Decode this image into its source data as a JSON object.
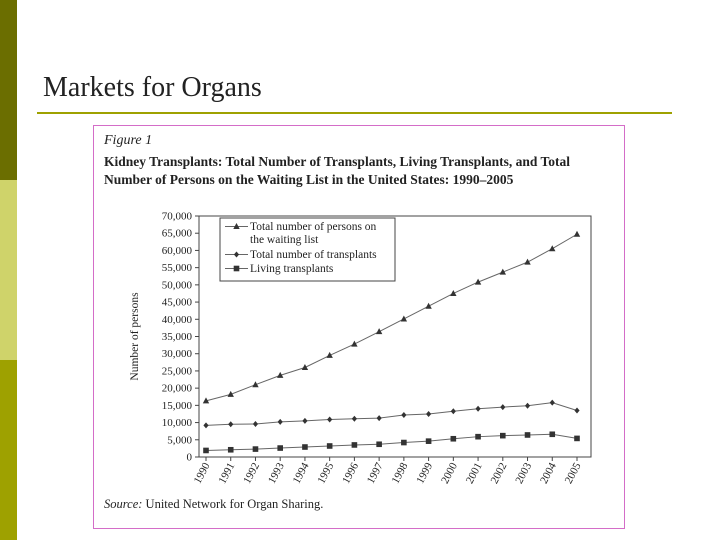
{
  "slide": {
    "title": "Markets for Organs",
    "colors": {
      "accent": "#9ea100",
      "accent_dark": "#6b6e00",
      "accent_light": "#cfd36a",
      "figure_border": "#d46dc8"
    }
  },
  "figure": {
    "label": "Figure 1",
    "heading": "Kidney Transplants: Total Number of Transplants, Living Transplants, and Total Number of Persons on the Waiting List in the United States: 1990–2005",
    "source_label": "Source:",
    "source_text": " United Network for Organ Sharing."
  },
  "chart_data": {
    "type": "line",
    "ylabel": "Number of persons",
    "xlabel": "",
    "ylim": [
      0,
      70000
    ],
    "yticks": [
      0,
      5000,
      10000,
      15000,
      20000,
      25000,
      30000,
      35000,
      40000,
      45000,
      50000,
      55000,
      60000,
      65000,
      70000
    ],
    "ytick_labels": [
      "0",
      "5,000",
      "10,000",
      "15,000",
      "20,000",
      "25,000",
      "30,000",
      "35,000",
      "40,000",
      "45,000",
      "50,000",
      "55,000",
      "60,000",
      "65,000",
      "70,000"
    ],
    "x": [
      "1990",
      "1991",
      "1992",
      "1993",
      "1994",
      "1995",
      "1996",
      "1997",
      "1998",
      "1999",
      "2000",
      "2001",
      "2002",
      "2003",
      "2004",
      "2005"
    ],
    "grid": false,
    "legend_position": "top-left",
    "series": [
      {
        "name": "Total number of persons on the waiting list",
        "marker": "triangle",
        "values": [
          16300,
          18200,
          21000,
          23700,
          26000,
          29500,
          32800,
          36400,
          40100,
          43800,
          47500,
          50800,
          53700,
          56600,
          60500,
          64700
        ]
      },
      {
        "name": "Total number of transplants",
        "marker": "diamond",
        "values": [
          9200,
          9500,
          9600,
          10200,
          10500,
          10900,
          11100,
          11300,
          12200,
          12500,
          13300,
          14000,
          14500,
          14900,
          15800,
          13500
        ]
      },
      {
        "name": "Living transplants",
        "marker": "square",
        "values": [
          1900,
          2100,
          2300,
          2600,
          2900,
          3200,
          3500,
          3700,
          4200,
          4600,
          5300,
          5900,
          6200,
          6400,
          6600,
          5400
        ]
      }
    ]
  }
}
